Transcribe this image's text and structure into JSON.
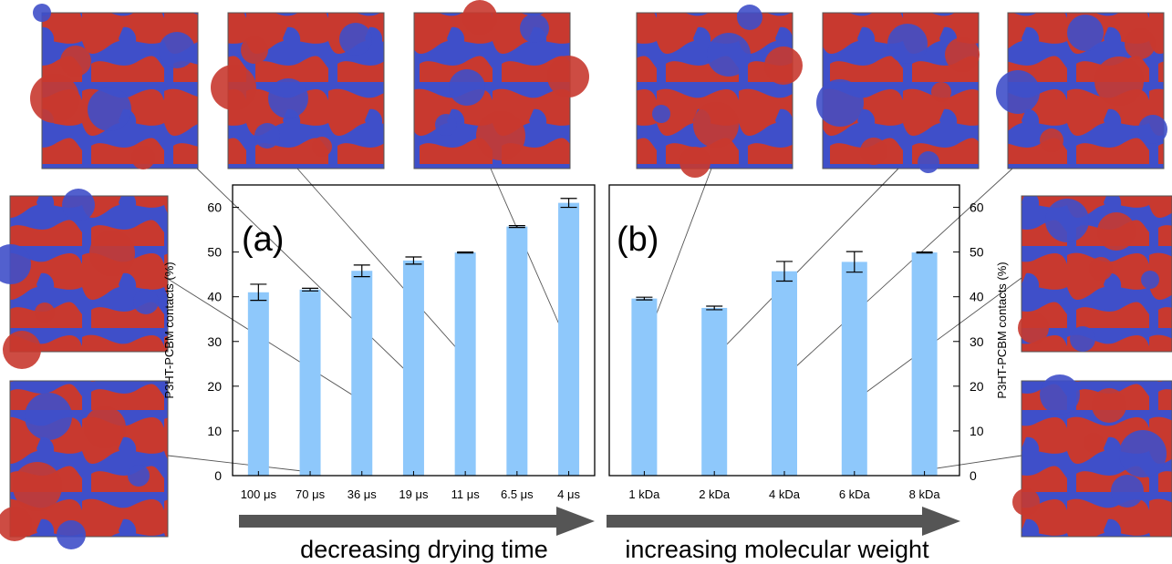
{
  "chart_data": [
    {
      "type": "bar",
      "panel_label": "(a)",
      "ylabel": "P3HT-PCBM contacts (%)",
      "categories": [
        "100 μs",
        "70 μs",
        "36 μs",
        "19 μs",
        "11 μs",
        "6.5 μs",
        "4 μs"
      ],
      "values": [
        41,
        41.6,
        45.8,
        48.1,
        49.9,
        55.7,
        61
      ],
      "errors": [
        1.8,
        0.3,
        1.3,
        0.8,
        0.1,
        0.2,
        1.0
      ],
      "ylim": [
        0,
        65
      ],
      "yticks": [
        0,
        10,
        20,
        30,
        40,
        50,
        60
      ],
      "bar_color": "#8ec8fb",
      "grid": false,
      "arrow_label": "decreasing drying time"
    },
    {
      "type": "bar",
      "panel_label": "(b)",
      "ylabel": "P3HT-PCBM contacts (%)",
      "categories": [
        "1 kDa",
        "2 kDa",
        "4 kDa",
        "6 kDa",
        "8 kDa"
      ],
      "values": [
        39.6,
        37.5,
        45.7,
        47.8,
        49.9
      ],
      "errors": [
        0.3,
        0.4,
        2.2,
        2.3,
        0.1
      ],
      "ylim": [
        0,
        65
      ],
      "yticks": [
        0,
        10,
        20,
        30,
        40,
        50,
        60
      ],
      "bar_color": "#8ec8fb",
      "grid": false,
      "arrow_label": "increasing molecular weight"
    }
  ],
  "snapshot_colors": {
    "polymer": "#c8392f",
    "fullerene": "#3f4fc9"
  }
}
